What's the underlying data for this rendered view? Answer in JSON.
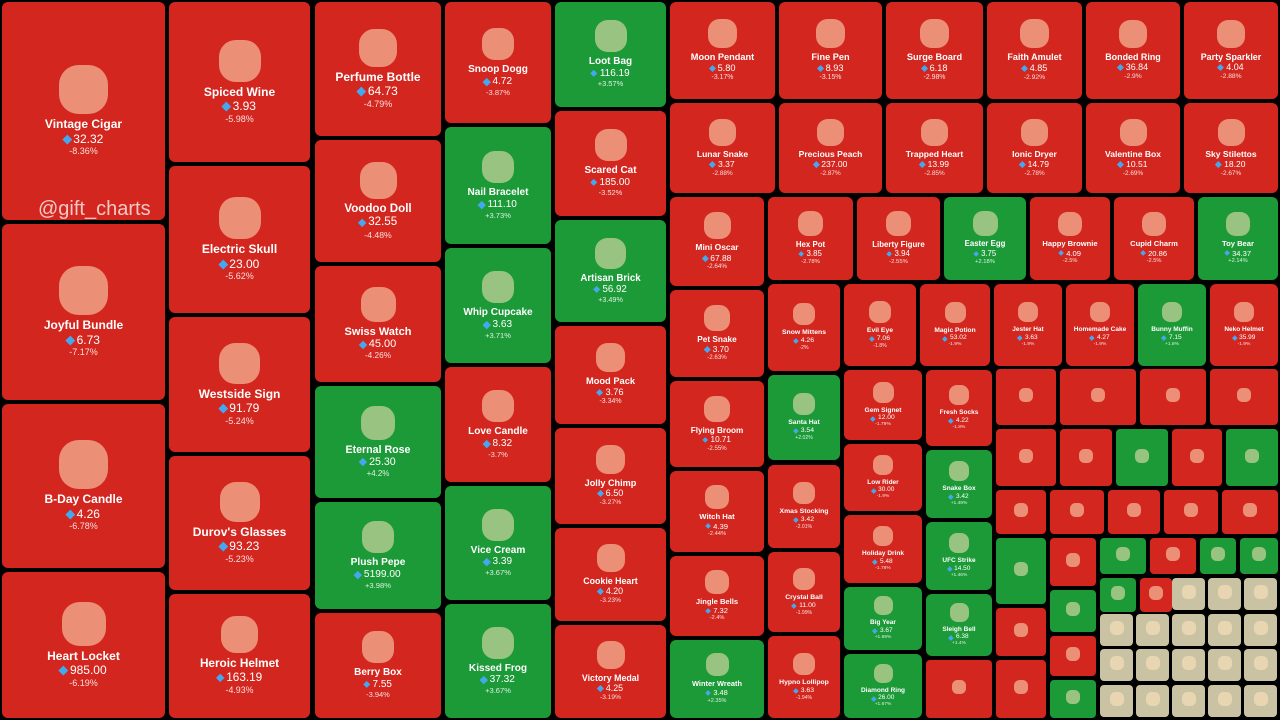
{
  "watermark": "@gift_charts",
  "tiles": [
    {
      "name": "Vintage Cigar",
      "price": "32.32",
      "change": "-8.36%"
    },
    {
      "name": "Joyful Bundle",
      "price": "6.73",
      "change": "-7.17%"
    },
    {
      "name": "B-Day Candle",
      "price": "4.26",
      "change": "-6.78%"
    },
    {
      "name": "Heart Locket",
      "price": "985.00",
      "change": "-6.19%"
    },
    {
      "name": "Spiced Wine",
      "price": "3.93",
      "change": "-5.98%"
    },
    {
      "name": "Electric Skull",
      "price": "23.00",
      "change": "-5.62%"
    },
    {
      "name": "Westside Sign",
      "price": "91.79",
      "change": "-5.24%"
    },
    {
      "name": "Durov's Glasses",
      "price": "93.23",
      "change": "-5.23%"
    },
    {
      "name": "Heroic Helmet",
      "price": "163.19",
      "change": "-4.93%"
    },
    {
      "name": "Perfume Bottle",
      "price": "64.73",
      "change": "-4.79%"
    },
    {
      "name": "Voodoo Doll",
      "price": "32.55",
      "change": "-4.48%"
    },
    {
      "name": "Swiss Watch",
      "price": "45.00",
      "change": "-4.26%"
    },
    {
      "name": "Eternal Rose",
      "price": "25.30",
      "change": "+4.2%"
    },
    {
      "name": "Plush Pepe",
      "price": "5199.00",
      "change": "+3.98%"
    },
    {
      "name": "Berry Box",
      "price": "7.55",
      "change": "-3.94%"
    },
    {
      "name": "Snoop Dogg",
      "price": "4.72",
      "change": "-3.87%"
    },
    {
      "name": "Nail Bracelet",
      "price": "111.10",
      "change": "+3.73%"
    },
    {
      "name": "Whip Cupcake",
      "price": "3.63",
      "change": "+3.71%"
    },
    {
      "name": "Love Candle",
      "price": "8.32",
      "change": "-3.7%"
    },
    {
      "name": "Vice Cream",
      "price": "3.39",
      "change": "+3.67%"
    },
    {
      "name": "Kissed Frog",
      "price": "37.32",
      "change": "+3.67%"
    },
    {
      "name": "Loot Bag",
      "price": "116.19",
      "change": "+3.57%"
    },
    {
      "name": "Scared Cat",
      "price": "185.00",
      "change": "-3.52%"
    },
    {
      "name": "Artisan Brick",
      "price": "56.92",
      "change": "+3.49%"
    },
    {
      "name": "Mood Pack",
      "price": "3.76",
      "change": "-3.34%"
    },
    {
      "name": "Jolly Chimp",
      "price": "6.50",
      "change": "-3.27%"
    },
    {
      "name": "Cookie Heart",
      "price": "4.20",
      "change": "-3.23%"
    },
    {
      "name": "Victory Medal",
      "price": "4.25",
      "change": "-3.19%"
    },
    {
      "name": "Moon Pendant",
      "price": "5.80",
      "change": "-3.17%"
    },
    {
      "name": "Fine Pen",
      "price": "8.93",
      "change": "-3.15%"
    },
    {
      "name": "Surge Board",
      "price": "6.18",
      "change": "-2.98%"
    },
    {
      "name": "Faith Amulet",
      "price": "4.85",
      "change": "-2.92%"
    },
    {
      "name": "Bonded Ring",
      "price": "36.84",
      "change": "-2.9%"
    },
    {
      "name": "Party Sparkler",
      "price": "4.04",
      "change": "-2.88%"
    },
    {
      "name": "Lunar Snake",
      "price": "3.37",
      "change": "-2.88%"
    },
    {
      "name": "Precious Peach",
      "price": "237.00",
      "change": "-2.87%"
    },
    {
      "name": "Trapped Heart",
      "price": "13.99",
      "change": "-2.85%"
    },
    {
      "name": "Ionic Dryer",
      "price": "14.79",
      "change": "-2.78%"
    },
    {
      "name": "Valentine Box",
      "price": "10.51",
      "change": "-2.69%"
    },
    {
      "name": "Sky Stilettos",
      "price": "18.20",
      "change": "-2.67%"
    },
    {
      "name": "Mini Oscar",
      "price": "67.88",
      "change": "-2.64%"
    },
    {
      "name": "Hex Pot",
      "price": "3.85",
      "change": "-2.78%"
    },
    {
      "name": "Liberty Figure",
      "price": "3.94",
      "change": "-2.55%"
    },
    {
      "name": "Easter Egg",
      "price": "3.75",
      "change": "+2.18%"
    },
    {
      "name": "Happy Brownie",
      "price": "4.09",
      "change": "-2.5%"
    },
    {
      "name": "Cupid Charm",
      "price": "20.86",
      "change": "-2.5%"
    },
    {
      "name": "Toy Bear",
      "price": "34.37",
      "change": "+2.14%"
    },
    {
      "name": "Pet Snake",
      "price": "3.70",
      "change": "-2.63%"
    },
    {
      "name": "Flying Broom",
      "price": "10.71",
      "change": "-2.55%"
    },
    {
      "name": "Witch Hat",
      "price": "4.39",
      "change": "-2.44%"
    },
    {
      "name": "Jingle Bells",
      "price": "7.32",
      "change": "-2.4%"
    },
    {
      "name": "Winter Wreath",
      "price": "3.48",
      "change": "+2.35%"
    },
    {
      "name": "Snow Mittens",
      "price": "4.26",
      "change": "-2%"
    },
    {
      "name": "Evil Eye",
      "price": "7.06",
      "change": "-1.8%"
    },
    {
      "name": "Magic Potion",
      "price": "53.02",
      "change": "-1.9%"
    },
    {
      "name": "Jester Hat",
      "price": "3.63",
      "change": "-1.9%"
    },
    {
      "name": "Homemade Cake",
      "price": "4.27",
      "change": "-1.9%"
    },
    {
      "name": "Bunny Muffin",
      "price": "7.15",
      "change": "+1.8%"
    },
    {
      "name": "Neko Helmet",
      "price": "35.99",
      "change": "-1.9%"
    },
    {
      "name": "Santa Hat",
      "price": "3.54",
      "change": "+2.02%"
    },
    {
      "name": "Xmas Stocking",
      "price": "3.42",
      "change": "-2.01%"
    },
    {
      "name": "Crystal Ball",
      "price": "11.00",
      "change": "-1.99%"
    },
    {
      "name": "Hypno Lollipop",
      "price": "3.63",
      "change": "-1.94%"
    },
    {
      "name": "Gem Signet",
      "price": "12.00",
      "change": "-1.79%"
    },
    {
      "name": "Low Rider",
      "price": "30.00",
      "change": "-1.9%"
    },
    {
      "name": "Holiday Drink",
      "price": "5.48",
      "change": "-1.78%"
    },
    {
      "name": "Big Year",
      "price": "3.67",
      "change": "+1.69%"
    },
    {
      "name": "Diamond Ring",
      "price": "26.00",
      "change": "+1.67%"
    },
    {
      "name": "Fresh Socks",
      "price": "4.22",
      "change": "-1.8%"
    },
    {
      "name": "Snake Box",
      "price": "3.42",
      "change": "+1.49%"
    },
    {
      "name": "UFC Strike",
      "price": "14.50",
      "change": "+1.46%"
    },
    {
      "name": "Sleigh Bell",
      "price": "6.38",
      "change": "+1.4%"
    }
  ]
}
